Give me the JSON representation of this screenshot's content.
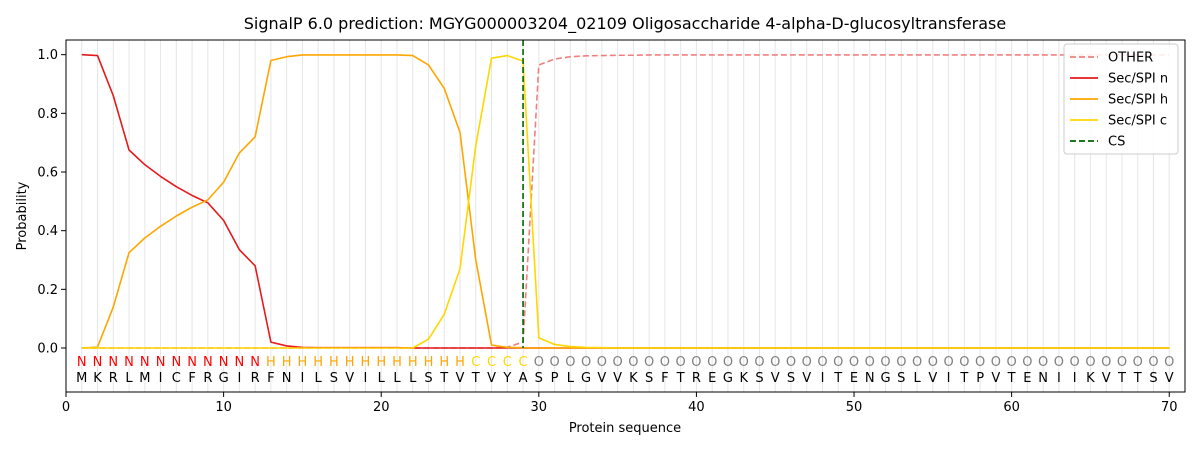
{
  "chart_data": {
    "type": "line",
    "title": "SignalP 6.0 prediction: MGYG000003204_02109 Oligosaccharide 4-alpha-D-glucosyltransferase",
    "xlabel": "Protein sequence",
    "ylabel": "Probability",
    "xlim": [
      0,
      71
    ],
    "ylim": [
      -0.15,
      1.05
    ],
    "xticks": [
      0,
      10,
      20,
      30,
      40,
      50,
      60,
      70
    ],
    "yticks": [
      0.0,
      0.2,
      0.4,
      0.6,
      0.8,
      1.0
    ],
    "ytick_labels": [
      "0.0",
      "0.2",
      "0.4",
      "0.6",
      "0.8",
      "1.0"
    ],
    "grid": "vertical lines at each residue",
    "legend_position": "top-right",
    "sequence": [
      "M",
      "K",
      "R",
      "L",
      "M",
      "I",
      "C",
      "F",
      "R",
      "G",
      "I",
      "R",
      "F",
      "N",
      "I",
      "L",
      "S",
      "V",
      "I",
      "L",
      "L",
      "L",
      "S",
      "T",
      "V",
      "T",
      "V",
      "Y",
      "A",
      "S",
      "P",
      "L",
      "G",
      "V",
      "V",
      "K",
      "S",
      "F",
      "T",
      "R",
      "E",
      "G",
      "K",
      "S",
      "V",
      "S",
      "V",
      "I",
      "T",
      "E",
      "N",
      "G",
      "S",
      "L",
      "V",
      "I",
      "T",
      "P",
      "V",
      "T",
      "E",
      "N",
      "I",
      "I",
      "K",
      "V",
      "T",
      "T",
      "S",
      "V"
    ],
    "labels": [
      "N",
      "N",
      "N",
      "N",
      "N",
      "N",
      "N",
      "N",
      "N",
      "N",
      "N",
      "N",
      "H",
      "H",
      "H",
      "H",
      "H",
      "H",
      "H",
      "H",
      "H",
      "H",
      "H",
      "H",
      "H",
      "C",
      "C",
      "C",
      "C",
      "O",
      "O",
      "O",
      "O",
      "O",
      "O",
      "O",
      "O",
      "O",
      "O",
      "O",
      "O",
      "O",
      "O",
      "O",
      "O",
      "O",
      "O",
      "O",
      "O",
      "O",
      "O",
      "O",
      "O",
      "O",
      "O",
      "O",
      "O",
      "O",
      "O",
      "O",
      "O",
      "O",
      "O",
      "O",
      "O",
      "O",
      "O",
      "O",
      "O",
      "O"
    ],
    "label_colors": {
      "N": "#ff0000",
      "H": "#ffa500",
      "C": "#ffd700",
      "O": "#808080"
    },
    "cleavage_site": 29,
    "series": [
      {
        "name": "OTHER",
        "color": "#f08080",
        "style": "dashed",
        "values": [
          0,
          0,
          0,
          0,
          0,
          0,
          0,
          0,
          0,
          0,
          0,
          0,
          0,
          0,
          0,
          0,
          0,
          0,
          0,
          0,
          0,
          0,
          0,
          0,
          0,
          0,
          0,
          0.003,
          0.02,
          0.965,
          0.985,
          0.993,
          0.996,
          0.997,
          0.998,
          0.998,
          0.999,
          0.999,
          0.999,
          0.999,
          0.999,
          0.999,
          0.999,
          0.999,
          0.999,
          0.999,
          0.999,
          0.999,
          0.999,
          0.999,
          0.999,
          0.999,
          0.999,
          0.999,
          0.999,
          0.999,
          0.999,
          0.999,
          0.999,
          0.999,
          0.999,
          0.999,
          0.999,
          0.999,
          0.999,
          0.999,
          0.999,
          0.999,
          0.999,
          0.999
        ]
      },
      {
        "name": "Sec/SPI n",
        "color": "#e41a1c",
        "style": "solid",
        "values": [
          1.0,
          0.997,
          0.86,
          0.675,
          0.625,
          0.585,
          0.55,
          0.52,
          0.495,
          0.435,
          0.335,
          0.28,
          0.02,
          0.007,
          0.002,
          0.001,
          0.001,
          0.001,
          0.001,
          0.001,
          0.001,
          0.0,
          0.0,
          0.0,
          0.0,
          0.0,
          0.0,
          0.0,
          0.0,
          0.0,
          0.0,
          0.0,
          0.0,
          0.0,
          0.0,
          0.0,
          0.0,
          0.0,
          0.0,
          0.0,
          0.0,
          0.0,
          0.0,
          0.0,
          0.0,
          0.0,
          0.0,
          0.0,
          0.0,
          0.0,
          0.0,
          0.0,
          0.0,
          0.0,
          0.0,
          0.0,
          0.0,
          0.0,
          0.0,
          0.0,
          0.0,
          0.0,
          0.0,
          0.0,
          0.0,
          0.0,
          0.0,
          0.0,
          0.0,
          0.0
        ]
      },
      {
        "name": "Sec/SPI h",
        "color": "#ffa500",
        "style": "solid",
        "values": [
          0.0,
          0.003,
          0.14,
          0.325,
          0.375,
          0.415,
          0.45,
          0.48,
          0.505,
          0.565,
          0.665,
          0.72,
          0.98,
          0.993,
          0.999,
          0.999,
          0.999,
          0.999,
          0.999,
          0.999,
          0.999,
          0.997,
          0.965,
          0.885,
          0.735,
          0.3,
          0.01,
          0.002,
          0.001,
          0.0,
          0.0,
          0.0,
          0.0,
          0.0,
          0.0,
          0.0,
          0.0,
          0.0,
          0.0,
          0.0,
          0.0,
          0.0,
          0.0,
          0.0,
          0.0,
          0.0,
          0.0,
          0.0,
          0.0,
          0.0,
          0.0,
          0.0,
          0.0,
          0.0,
          0.0,
          0.0,
          0.0,
          0.0,
          0.0,
          0.0,
          0.0,
          0.0,
          0.0,
          0.0,
          0.0,
          0.0,
          0.0,
          0.0,
          0.0,
          0.0
        ]
      },
      {
        "name": "Sec/SPI c",
        "color": "#ffd700",
        "style": "solid",
        "values": [
          0.0,
          0.0,
          0.0,
          0.0,
          0.0,
          0.0,
          0.0,
          0.0,
          0.0,
          0.0,
          0.0,
          0.0,
          0.0,
          0.0,
          0.0,
          0.0,
          0.0,
          0.0,
          0.0,
          0.0,
          0.0,
          0.0,
          0.03,
          0.115,
          0.27,
          0.69,
          0.988,
          0.997,
          0.978,
          0.035,
          0.012,
          0.005,
          0.002,
          0.001,
          0.0,
          0.0,
          0.0,
          0.0,
          0.0,
          0.0,
          0.0,
          0.0,
          0.0,
          0.0,
          0.0,
          0.0,
          0.0,
          0.0,
          0.0,
          0.0,
          0.0,
          0.0,
          0.0,
          0.0,
          0.0,
          0.0,
          0.0,
          0.0,
          0.0,
          0.0,
          0.0,
          0.0,
          0.0,
          0.0,
          0.0,
          0.0,
          0.0,
          0.0,
          0.0,
          0.0
        ]
      },
      {
        "name": "CS",
        "color": "#006400",
        "style": "dashed"
      }
    ]
  }
}
